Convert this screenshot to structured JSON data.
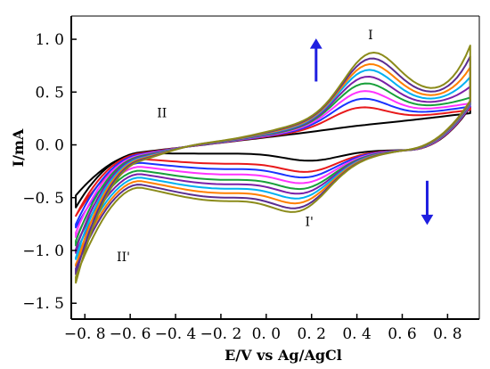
{
  "chart_data": {
    "type": "line",
    "title": "",
    "xlabel": "E/V vs Ag/AgCl",
    "ylabel": "I/mA",
    "xlim": [
      -0.86,
      0.94
    ],
    "ylim": [
      -1.65,
      1.22
    ],
    "grid": false,
    "legend": "none",
    "x_ticks": [
      {
        "value": -0.8,
        "label": "−0. 8"
      },
      {
        "value": -0.6,
        "label": "−0. 6"
      },
      {
        "value": -0.4,
        "label": "−0. 4"
      },
      {
        "value": -0.2,
        "label": "−0. 2"
      },
      {
        "value": 0.0,
        "label": "0. 0"
      },
      {
        "value": 0.2,
        "label": "0. 2"
      },
      {
        "value": 0.4,
        "label": "0. 4"
      },
      {
        "value": 0.6,
        "label": "0. 6"
      },
      {
        "value": 0.8,
        "label": "0. 8"
      }
    ],
    "y_ticks": [
      {
        "value": 1.0,
        "label": "1. 0"
      },
      {
        "value": 0.5,
        "label": "0. 5"
      },
      {
        "value": 0.0,
        "label": "0. 0"
      },
      {
        "value": -0.5,
        "label": "−0. 5"
      },
      {
        "value": -1.0,
        "label": "−1. 0"
      },
      {
        "value": -1.5,
        "label": "−1. 5"
      }
    ],
    "annotations": [
      {
        "text": "I",
        "x": 0.46,
        "y": 1.0
      },
      {
        "text": "II",
        "x": -0.46,
        "y": 0.26
      },
      {
        "text": "I'",
        "x": 0.19,
        "y": -0.77
      },
      {
        "text": "II'",
        "x": -0.63,
        "y": -1.1
      }
    ],
    "arrows": [
      {
        "direction": "up",
        "color": "#1f1fe0",
        "x": 0.22,
        "y_from": 0.6,
        "y_to": 1.0
      },
      {
        "direction": "down",
        "color": "#1f1fe0",
        "x": 0.71,
        "y_from": -0.34,
        "y_to": -0.75
      }
    ],
    "series": [
      {
        "color": "#000000",
        "anodic_peak": 0.21,
        "cathodic_peak": -0.07,
        "vertex_high": 0.41,
        "vertex_low": -0.47
      },
      {
        "color": "#e8191b",
        "anodic_peak": 0.38,
        "cathodic_peak": -0.16,
        "vertex_high": 0.57,
        "vertex_low": -0.72
      },
      {
        "color": "#1a33ff",
        "anodic_peak": 0.46,
        "cathodic_peak": -0.2,
        "vertex_high": 0.64,
        "vertex_low": -0.84
      },
      {
        "color": "#ff33ff",
        "anodic_peak": 0.53,
        "cathodic_peak": -0.24,
        "vertex_high": 0.7,
        "vertex_low": -0.94
      },
      {
        "color": "#18a03a",
        "anodic_peak": 0.6,
        "cathodic_peak": -0.28,
        "vertex_high": 0.77,
        "vertex_low": -1.03
      },
      {
        "color": "#7a1fa8",
        "anodic_peak": 0.66,
        "cathodic_peak": -0.31,
        "vertex_high": 0.83,
        "vertex_low": -1.1
      },
      {
        "color": "#00b0f0",
        "anodic_peak": 0.72,
        "cathodic_peak": -0.34,
        "vertex_high": 0.88,
        "vertex_low": -1.16
      },
      {
        "color": "#ff7f00",
        "anodic_peak": 0.77,
        "cathodic_peak": -0.37,
        "vertex_high": 0.93,
        "vertex_low": -1.21
      },
      {
        "color": "#5a2d91",
        "anodic_peak": 0.82,
        "cathodic_peak": -0.4,
        "vertex_high": 0.99,
        "vertex_low": -1.25
      },
      {
        "color": "#8b8b1a",
        "anodic_peak": 0.87,
        "cathodic_peak": -0.42,
        "vertex_high": 1.05,
        "vertex_low": -1.32
      }
    ]
  }
}
